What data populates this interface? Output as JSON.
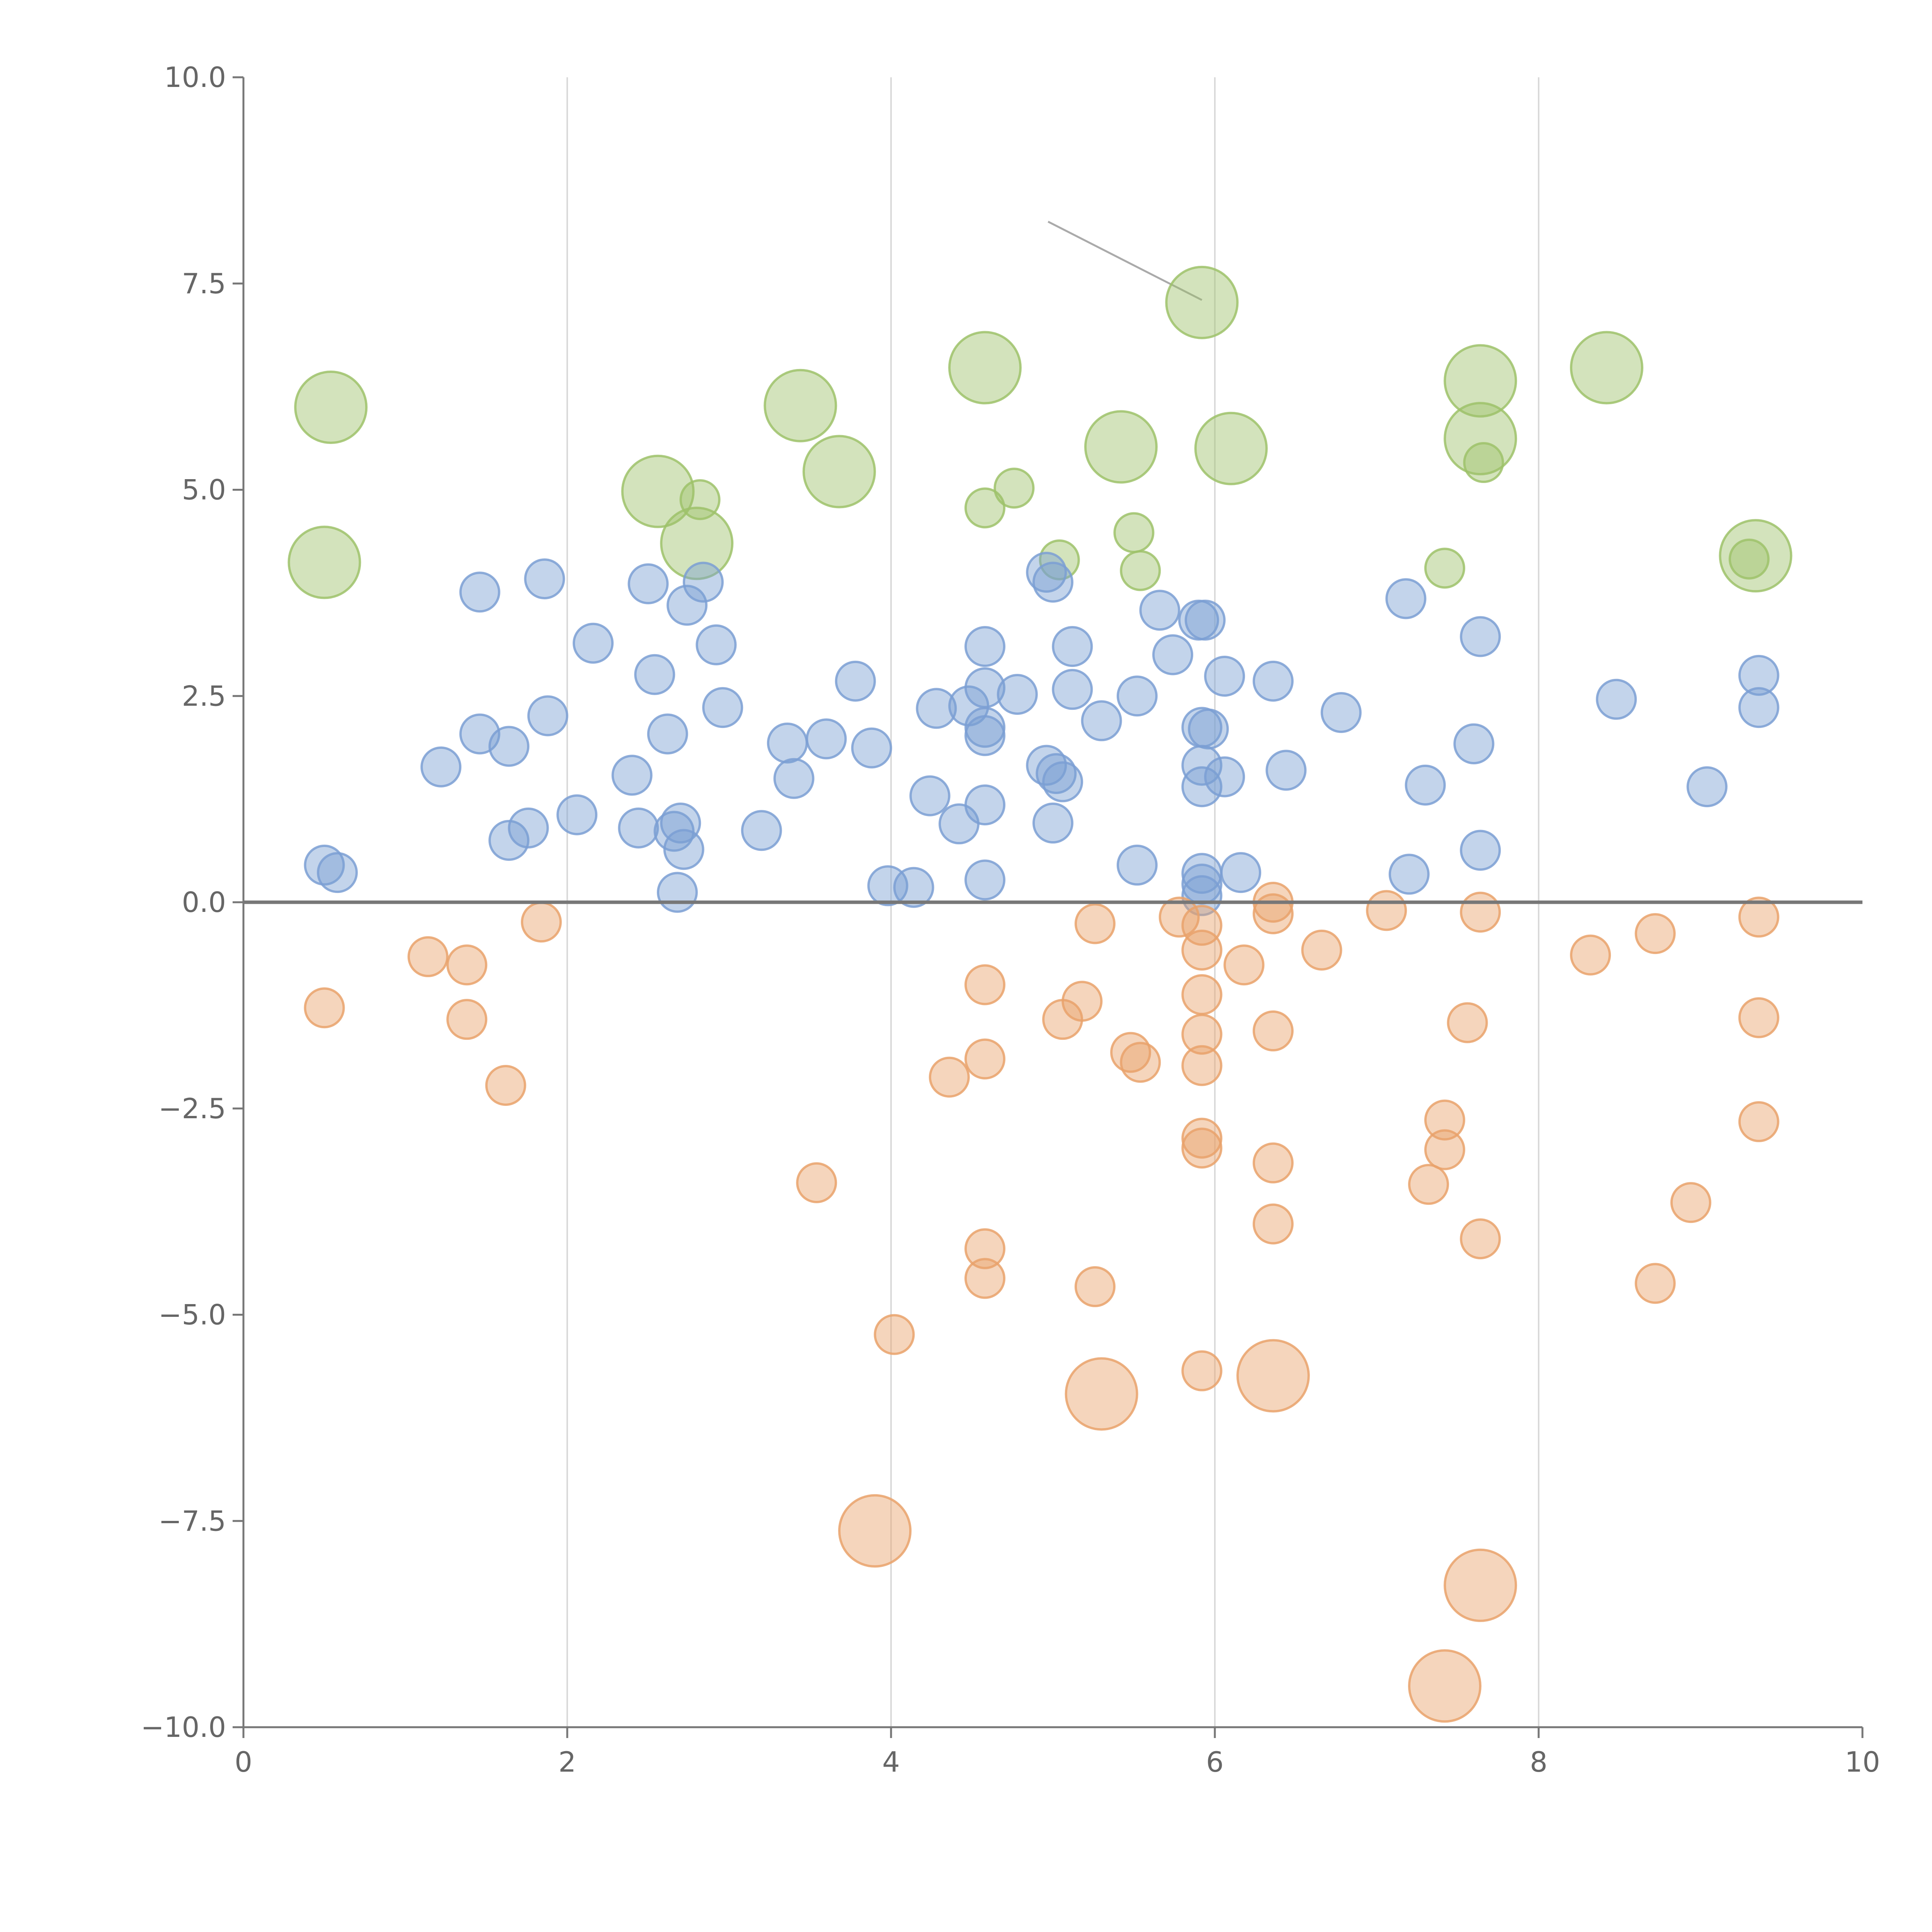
{
  "chart_data": {
    "type": "scatter",
    "title": "",
    "xlabel": "",
    "ylabel": "",
    "xlim": [
      0,
      10
    ],
    "ylim": [
      -10,
      10
    ],
    "xticks": [
      "0",
      "2",
      "4",
      "6",
      "8",
      "10"
    ],
    "yticks": [
      "10.0",
      "7.5",
      "5.0",
      "2.5",
      "0.0",
      "−2.5",
      "−5.0",
      "−7.5",
      "−10.0"
    ],
    "xtick_values": [
      0,
      2,
      4,
      6,
      8,
      10
    ],
    "ytick_values": [
      10,
      7.5,
      5,
      2.5,
      0,
      -2.5,
      -5,
      -7.5,
      -10
    ],
    "vertical_gridlines_at": [
      2,
      4,
      6,
      8
    ],
    "zero_line": true,
    "annotation_line": {
      "from": [
        4.97,
        8.25
      ],
      "to": [
        5.92,
        7.3
      ]
    },
    "series": [
      {
        "name": "green",
        "color": "#9dc26a",
        "points": [
          {
            "x": 0.54,
            "y": 6.0,
            "s": 3
          },
          {
            "x": 0.5,
            "y": 4.12,
            "s": 3
          },
          {
            "x": 2.56,
            "y": 4.98,
            "s": 3
          },
          {
            "x": 2.8,
            "y": 4.35,
            "s": 3
          },
          {
            "x": 2.82,
            "y": 4.88,
            "s": 1
          },
          {
            "x": 3.44,
            "y": 6.02,
            "s": 3
          },
          {
            "x": 3.68,
            "y": 5.22,
            "s": 3
          },
          {
            "x": 4.58,
            "y": 6.48,
            "s": 3
          },
          {
            "x": 4.58,
            "y": 4.78,
            "s": 1
          },
          {
            "x": 4.76,
            "y": 5.02,
            "s": 1
          },
          {
            "x": 5.04,
            "y": 4.15,
            "s": 1
          },
          {
            "x": 5.42,
            "y": 5.52,
            "s": 3
          },
          {
            "x": 5.5,
            "y": 4.48,
            "s": 1
          },
          {
            "x": 5.54,
            "y": 4.02,
            "s": 1
          },
          {
            "x": 5.92,
            "y": 7.27,
            "s": 3
          },
          {
            "x": 6.1,
            "y": 5.5,
            "s": 3
          },
          {
            "x": 7.42,
            "y": 4.05,
            "s": 1
          },
          {
            "x": 7.64,
            "y": 6.32,
            "s": 3
          },
          {
            "x": 7.64,
            "y": 5.62,
            "s": 3
          },
          {
            "x": 7.66,
            "y": 5.33,
            "s": 1
          },
          {
            "x": 8.42,
            "y": 6.48,
            "s": 3
          },
          {
            "x": 9.34,
            "y": 4.2,
            "s": 3
          },
          {
            "x": 9.3,
            "y": 4.16,
            "s": 1
          }
        ]
      },
      {
        "name": "blue",
        "color": "#7b9fd3",
        "points": [
          {
            "x": 0.5,
            "y": 0.45
          },
          {
            "x": 0.58,
            "y": 0.36
          },
          {
            "x": 1.22,
            "y": 1.64
          },
          {
            "x": 1.46,
            "y": 3.76
          },
          {
            "x": 1.46,
            "y": 2.04
          },
          {
            "x": 1.64,
            "y": 1.89
          },
          {
            "x": 1.64,
            "y": 0.75
          },
          {
            "x": 1.76,
            "y": 0.9
          },
          {
            "x": 1.86,
            "y": 3.92
          },
          {
            "x": 1.88,
            "y": 2.26
          },
          {
            "x": 2.06,
            "y": 1.06
          },
          {
            "x": 2.16,
            "y": 3.14
          },
          {
            "x": 2.4,
            "y": 1.54
          },
          {
            "x": 2.44,
            "y": 0.9
          },
          {
            "x": 2.5,
            "y": 3.86
          },
          {
            "x": 2.54,
            "y": 2.76
          },
          {
            "x": 2.62,
            "y": 2.04
          },
          {
            "x": 2.66,
            "y": 0.86
          },
          {
            "x": 2.7,
            "y": 0.96
          },
          {
            "x": 2.72,
            "y": 0.64
          },
          {
            "x": 2.68,
            "y": 0.12
          },
          {
            "x": 2.74,
            "y": 3.6
          },
          {
            "x": 2.84,
            "y": 3.88
          },
          {
            "x": 2.92,
            "y": 3.12
          },
          {
            "x": 2.96,
            "y": 2.36
          },
          {
            "x": 3.2,
            "y": 0.87
          },
          {
            "x": 3.36,
            "y": 1.93
          },
          {
            "x": 3.4,
            "y": 1.5
          },
          {
            "x": 3.6,
            "y": 1.98
          },
          {
            "x": 3.78,
            "y": 2.68
          },
          {
            "x": 3.88,
            "y": 1.87
          },
          {
            "x": 3.98,
            "y": 0.2
          },
          {
            "x": 4.14,
            "y": 0.18
          },
          {
            "x": 4.24,
            "y": 1.29
          },
          {
            "x": 4.28,
            "y": 2.35
          },
          {
            "x": 4.42,
            "y": 0.95
          },
          {
            "x": 4.48,
            "y": 2.38
          },
          {
            "x": 4.58,
            "y": 3.1
          },
          {
            "x": 4.58,
            "y": 2.6
          },
          {
            "x": 4.58,
            "y": 2.12
          },
          {
            "x": 4.58,
            "y": 2.02
          },
          {
            "x": 4.58,
            "y": 1.18
          },
          {
            "x": 4.58,
            "y": 0.27
          },
          {
            "x": 4.78,
            "y": 2.52
          },
          {
            "x": 4.96,
            "y": 4.0
          },
          {
            "x": 5.0,
            "y": 3.88
          },
          {
            "x": 4.96,
            "y": 1.66
          },
          {
            "x": 5.02,
            "y": 1.56
          },
          {
            "x": 5.06,
            "y": 1.46
          },
          {
            "x": 5.0,
            "y": 0.96
          },
          {
            "x": 5.12,
            "y": 3.1
          },
          {
            "x": 5.12,
            "y": 2.58
          },
          {
            "x": 5.3,
            "y": 2.2
          },
          {
            "x": 5.52,
            "y": 2.5
          },
          {
            "x": 5.52,
            "y": 0.45
          },
          {
            "x": 5.66,
            "y": 3.54
          },
          {
            "x": 5.74,
            "y": 3.0
          },
          {
            "x": 5.9,
            "y": 3.42
          },
          {
            "x": 5.94,
            "y": 3.42
          },
          {
            "x": 5.92,
            "y": 2.12
          },
          {
            "x": 5.96,
            "y": 2.1
          },
          {
            "x": 5.92,
            "y": 1.66
          },
          {
            "x": 5.92,
            "y": 1.4
          },
          {
            "x": 6.06,
            "y": 1.52
          },
          {
            "x": 5.92,
            "y": 0.35
          },
          {
            "x": 5.92,
            "y": 0.22
          },
          {
            "x": 5.92,
            "y": 0.08
          },
          {
            "x": 6.06,
            "y": 2.74
          },
          {
            "x": 6.16,
            "y": 0.36
          },
          {
            "x": 6.36,
            "y": 2.68
          },
          {
            "x": 6.44,
            "y": 1.6
          },
          {
            "x": 6.78,
            "y": 2.3
          },
          {
            "x": 7.18,
            "y": 3.68
          },
          {
            "x": 7.2,
            "y": 0.34
          },
          {
            "x": 7.3,
            "y": 1.42
          },
          {
            "x": 7.6,
            "y": 1.92
          },
          {
            "x": 7.64,
            "y": 3.22
          },
          {
            "x": 7.64,
            "y": 0.63
          },
          {
            "x": 8.48,
            "y": 2.46
          },
          {
            "x": 9.04,
            "y": 1.4
          },
          {
            "x": 9.36,
            "y": 2.75
          },
          {
            "x": 9.36,
            "y": 2.36
          }
        ]
      },
      {
        "name": "orange",
        "color": "#e9a26b",
        "points": [
          {
            "x": 0.5,
            "y": -1.28,
            "s": 1
          },
          {
            "x": 1.14,
            "y": -0.66,
            "s": 1
          },
          {
            "x": 1.38,
            "y": -0.76,
            "s": 1
          },
          {
            "x": 1.38,
            "y": -1.42,
            "s": 1
          },
          {
            "x": 1.62,
            "y": -2.22,
            "s": 1
          },
          {
            "x": 1.84,
            "y": -0.24,
            "s": 1
          },
          {
            "x": 3.54,
            "y": -3.4,
            "s": 1
          },
          {
            "x": 3.9,
            "y": -7.62,
            "s": 3
          },
          {
            "x": 4.02,
            "y": -5.24,
            "s": 1
          },
          {
            "x": 4.36,
            "y": -2.12,
            "s": 1
          },
          {
            "x": 4.58,
            "y": -1.0,
            "s": 1
          },
          {
            "x": 4.58,
            "y": -1.9,
            "s": 1
          },
          {
            "x": 4.58,
            "y": -4.2,
            "s": 1
          },
          {
            "x": 4.58,
            "y": -4.56,
            "s": 1
          },
          {
            "x": 5.06,
            "y": -1.42,
            "s": 1
          },
          {
            "x": 5.18,
            "y": -1.2,
            "s": 1
          },
          {
            "x": 5.26,
            "y": -0.26,
            "s": 1
          },
          {
            "x": 5.26,
            "y": -4.66,
            "s": 1
          },
          {
            "x": 5.3,
            "y": -5.96,
            "s": 3
          },
          {
            "x": 5.48,
            "y": -1.82,
            "s": 1
          },
          {
            "x": 5.54,
            "y": -1.94,
            "s": 1
          },
          {
            "x": 5.78,
            "y": -0.18,
            "s": 1
          },
          {
            "x": 5.92,
            "y": -0.28,
            "s": 1
          },
          {
            "x": 5.92,
            "y": -0.58,
            "s": 1
          },
          {
            "x": 5.92,
            "y": -1.12,
            "s": 1
          },
          {
            "x": 5.92,
            "y": -1.6,
            "s": 1
          },
          {
            "x": 5.92,
            "y": -1.98,
            "s": 1
          },
          {
            "x": 5.92,
            "y": -2.86,
            "s": 1
          },
          {
            "x": 5.92,
            "y": -2.98,
            "s": 1
          },
          {
            "x": 5.92,
            "y": -5.68,
            "s": 1
          },
          {
            "x": 6.18,
            "y": -0.76,
            "s": 1
          },
          {
            "x": 6.36,
            "y": 0.0,
            "s": 1
          },
          {
            "x": 6.36,
            "y": -0.14,
            "s": 1
          },
          {
            "x": 6.36,
            "y": -1.56,
            "s": 1
          },
          {
            "x": 6.36,
            "y": -3.16,
            "s": 1
          },
          {
            "x": 6.36,
            "y": -3.9,
            "s": 1
          },
          {
            "x": 6.36,
            "y": -5.74,
            "s": 3
          },
          {
            "x": 6.66,
            "y": -0.58,
            "s": 1
          },
          {
            "x": 7.06,
            "y": -0.1,
            "s": 1
          },
          {
            "x": 7.32,
            "y": -3.42,
            "s": 1
          },
          {
            "x": 7.42,
            "y": -2.64,
            "s": 1
          },
          {
            "x": 7.42,
            "y": -3.0,
            "s": 1
          },
          {
            "x": 7.42,
            "y": -9.5,
            "s": 3
          },
          {
            "x": 7.56,
            "y": -1.46,
            "s": 1
          },
          {
            "x": 7.64,
            "y": -0.12,
            "s": 1
          },
          {
            "x": 7.64,
            "y": -4.08,
            "s": 1
          },
          {
            "x": 7.64,
            "y": -8.28,
            "s": 3
          },
          {
            "x": 8.32,
            "y": -0.64,
            "s": 1
          },
          {
            "x": 8.72,
            "y": -0.38,
            "s": 1
          },
          {
            "x": 8.72,
            "y": -4.62,
            "s": 1
          },
          {
            "x": 8.94,
            "y": -3.64,
            "s": 1
          },
          {
            "x": 9.36,
            "y": -0.18,
            "s": 1
          },
          {
            "x": 9.36,
            "y": -1.4,
            "s": 1
          },
          {
            "x": 9.36,
            "y": -2.66,
            "s": 1
          }
        ]
      }
    ]
  }
}
